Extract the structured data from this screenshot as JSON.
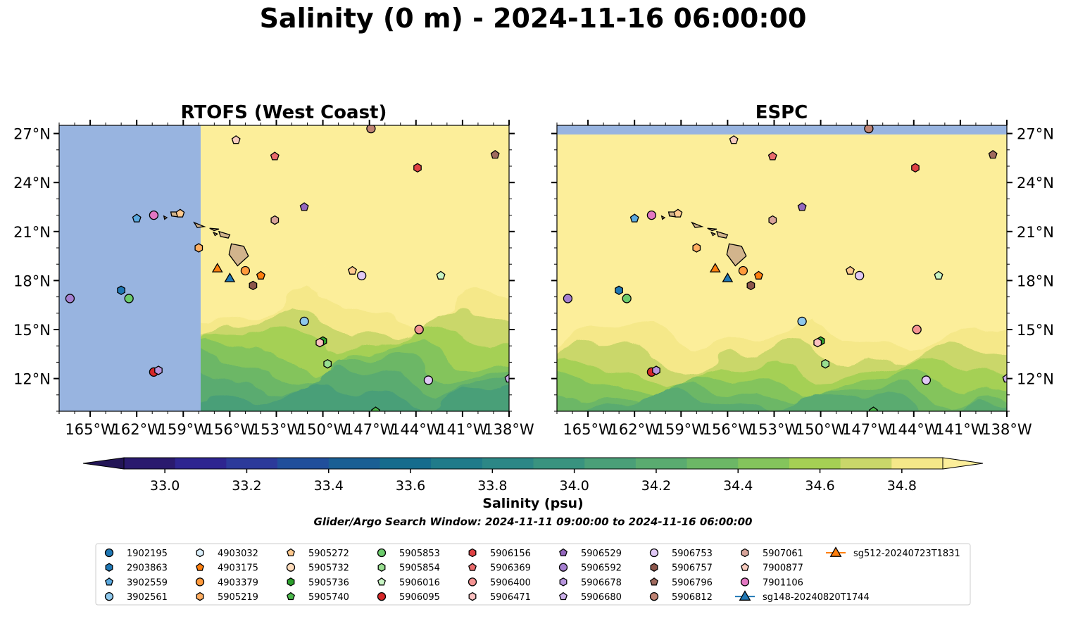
{
  "title": "Salinity (0 m) - 2024-11-16 06:00:00",
  "panels": [
    {
      "title": "RTOFS (West Coast)"
    },
    {
      "title": "ESPC"
    }
  ],
  "map": {
    "lon_range": [
      -167.0,
      -138.0
    ],
    "lat_range": [
      10.0,
      27.5
    ],
    "lon_ticks": [
      -165,
      -162,
      -159,
      -156,
      -153,
      -150,
      -147,
      -144,
      -141,
      -138
    ],
    "lon_tick_labels": [
      "165°W",
      "162°W",
      "159°W",
      "156°W",
      "153°W",
      "150°W",
      "147°W",
      "144°W",
      "141°W",
      "138°W"
    ],
    "lat_ticks": [
      12,
      15,
      18,
      21,
      24,
      27
    ],
    "lat_tick_labels": [
      "12°N",
      "15°N",
      "18°N",
      "21°N",
      "24°N",
      "27°N"
    ]
  },
  "colorbar": {
    "label": "Salinity (psu)",
    "min": 32.9,
    "max": 34.9,
    "step": 0.1,
    "tick_values": [
      33.0,
      33.2,
      33.4,
      33.6,
      33.8,
      34.0,
      34.2,
      34.4,
      34.6,
      34.8
    ],
    "tick_labels": [
      "33.0",
      "33.2",
      "33.4",
      "33.6",
      "33.8",
      "34.0",
      "34.2",
      "34.4",
      "34.6",
      "34.8"
    ],
    "colors": [
      "#2a1a6e",
      "#2e2590",
      "#2c3a9a",
      "#214f9b",
      "#1a5f94",
      "#166c8d",
      "#207b8a",
      "#2c8786",
      "#39937f",
      "#4a9f78",
      "#5aab70",
      "#6cb766",
      "#84c45c",
      "#a5d054",
      "#cad76a",
      "#f5e889"
    ],
    "under_color": "#231556",
    "over_color": "#fcee9a"
  },
  "colors": {
    "land": "#d2b48c",
    "nodata": "#98b4e0"
  },
  "search_window": "Glider/Argo Search Window: 2024-11-11 09:00:00 to 2024-11-16 06:00:00",
  "legend": [
    {
      "label": "1902195",
      "shape": "circle",
      "color": "#1f77b4"
    },
    {
      "label": "2903863",
      "shape": "hexagon",
      "color": "#1f77b4"
    },
    {
      "label": "3902559",
      "shape": "pentagon",
      "color": "#5aa9e0"
    },
    {
      "label": "3902561",
      "shape": "circle",
      "color": "#8ec8ec"
    },
    {
      "label": "4903032",
      "shape": "hexagon",
      "color": "#d9eefa"
    },
    {
      "label": "4903175",
      "shape": "pentagon",
      "color": "#ff7f0e"
    },
    {
      "label": "4903379",
      "shape": "circle",
      "color": "#ff9a3c"
    },
    {
      "label": "5905219",
      "shape": "hexagon",
      "color": "#ffad60"
    },
    {
      "label": "5905272",
      "shape": "pentagon",
      "color": "#ffc98e"
    },
    {
      "label": "5905732",
      "shape": "circle",
      "color": "#ffdcbc"
    },
    {
      "label": "5905736",
      "shape": "hexagon",
      "color": "#2ca02c"
    },
    {
      "label": "5905740",
      "shape": "pentagon",
      "color": "#4bb84b"
    },
    {
      "label": "5905853",
      "shape": "circle",
      "color": "#6ccc6c"
    },
    {
      "label": "5905854",
      "shape": "hexagon",
      "color": "#98de90"
    },
    {
      "label": "5906016",
      "shape": "pentagon",
      "color": "#c8f5c4"
    },
    {
      "label": "5906095",
      "shape": "circle",
      "color": "#d62728"
    },
    {
      "label": "5906156",
      "shape": "hexagon",
      "color": "#e04244"
    },
    {
      "label": "5906369",
      "shape": "pentagon",
      "color": "#ea6b6c"
    },
    {
      "label": "5906400",
      "shape": "circle",
      "color": "#f49392"
    },
    {
      "label": "5906471",
      "shape": "hexagon",
      "color": "#fbc0c0"
    },
    {
      "label": "5906529",
      "shape": "pentagon",
      "color": "#9467bd"
    },
    {
      "label": "5906592",
      "shape": "circle",
      "color": "#a57fd0"
    },
    {
      "label": "5906678",
      "shape": "hexagon",
      "color": "#b896de"
    },
    {
      "label": "5906680",
      "shape": "pentagon",
      "color": "#ccb0ea"
    },
    {
      "label": "5906753",
      "shape": "circle",
      "color": "#e0c8f5"
    },
    {
      "label": "5906757",
      "shape": "hexagon",
      "color": "#8c564b"
    },
    {
      "label": "5906796",
      "shape": "pentagon",
      "color": "#a06a5e"
    },
    {
      "label": "5906812",
      "shape": "circle",
      "color": "#c08474"
    },
    {
      "label": "5907061",
      "shape": "hexagon",
      "color": "#d8a49a"
    },
    {
      "label": "7900877",
      "shape": "pentagon",
      "color": "#f7cbbe"
    },
    {
      "label": "7901106",
      "shape": "circle",
      "color": "#e377c2"
    },
    {
      "label": "sg148-20240820T1744",
      "shape": "triangle",
      "color": "#1f77b4",
      "line": true
    },
    {
      "label": "sg512-20240723T1831",
      "shape": "triangle",
      "color": "#ff7f0e",
      "line": true
    }
  ],
  "markers": [
    {
      "id": "5906812",
      "lon": -146.9,
      "lat": 27.3
    },
    {
      "id": "7900877",
      "lon": -155.6,
      "lat": 26.6
    },
    {
      "id": "5906796",
      "lon": -138.9,
      "lat": 25.7
    },
    {
      "id": "5906369",
      "lon": -153.1,
      "lat": 25.6
    },
    {
      "id": "5906156",
      "lon": -143.9,
      "lat": 24.9
    },
    {
      "id": "5906529",
      "lon": -151.2,
      "lat": 22.5
    },
    {
      "id": "5905272",
      "lon": -159.2,
      "lat": 22.1
    },
    {
      "id": "7901106",
      "lon": -160.9,
      "lat": 22.0
    },
    {
      "id": "3902559",
      "lon": -162.0,
      "lat": 21.8
    },
    {
      "id": "5907061",
      "lon": -153.1,
      "lat": 21.7
    },
    {
      "id": "5905219",
      "lon": -158.0,
      "lat": 20.0
    },
    {
      "id": "4903379",
      "lon": -155.0,
      "lat": 18.6
    },
    {
      "id": "sg512-20240723T1831",
      "lon": -156.8,
      "lat": 18.7
    },
    {
      "id": "5905272",
      "lon": -148.1,
      "lat": 18.6
    },
    {
      "id": "4903175",
      "lon": -154.0,
      "lat": 18.3
    },
    {
      "id": "5906753",
      "lon": -147.5,
      "lat": 18.3
    },
    {
      "id": "5906016",
      "lon": -142.4,
      "lat": 18.3
    },
    {
      "id": "sg148-20240820T1744",
      "lon": -156.0,
      "lat": 18.1
    },
    {
      "id": "5906757",
      "lon": -154.5,
      "lat": 17.7
    },
    {
      "id": "2903863",
      "lon": -163.0,
      "lat": 17.4
    },
    {
      "id": "5906592",
      "lon": -166.3,
      "lat": 16.9
    },
    {
      "id": "5905853",
      "lon": -162.5,
      "lat": 16.9
    },
    {
      "id": "3902561",
      "lon": -151.2,
      "lat": 15.5
    },
    {
      "id": "5906400",
      "lon": -143.8,
      "lat": 15.0
    },
    {
      "id": "5905736",
      "lon": -150.0,
      "lat": 14.3
    },
    {
      "id": "5906471",
      "lon": -150.2,
      "lat": 14.2
    },
    {
      "id": "5905854",
      "lon": -149.7,
      "lat": 12.9
    },
    {
      "id": "5906095",
      "lon": -160.9,
      "lat": 12.4
    },
    {
      "id": "5906678",
      "lon": -160.6,
      "lat": 12.5
    },
    {
      "id": "5906753",
      "lon": -143.2,
      "lat": 11.9
    },
    {
      "id": "5906680",
      "lon": -138.0,
      "lat": 12.0
    },
    {
      "id": "5905740",
      "lon": -146.6,
      "lat": 10.0
    }
  ]
}
